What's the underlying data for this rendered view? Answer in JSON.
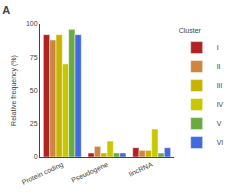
{
  "chart_data": {
    "type": "bar",
    "title": "A",
    "categories": [
      "Protein coding",
      "Pseudogene",
      "lincRNA"
    ],
    "series": [
      {
        "name": "I",
        "color": "#b22222",
        "values": [
          92,
          3,
          7
        ]
      },
      {
        "name": "II",
        "color": "#cd853f",
        "values": [
          88,
          8,
          5
        ]
      },
      {
        "name": "III",
        "color": "#c8b400",
        "values": [
          92,
          3,
          5
        ]
      },
      {
        "name": "IV",
        "color": "#c8c800",
        "values": [
          70,
          12,
          21
        ]
      },
      {
        "name": "V",
        "color": "#6aaa40",
        "values": [
          96,
          3,
          3
        ]
      },
      {
        "name": "VI",
        "color": "#4169e1",
        "values": [
          92,
          3,
          7
        ]
      }
    ],
    "ylabel": "Relative frequency (%)",
    "ylim": [
      0,
      100
    ],
    "yticks": [
      0,
      25,
      50,
      75,
      100
    ],
    "legend_title": "Cluster",
    "legend": "right",
    "grid": false
  }
}
